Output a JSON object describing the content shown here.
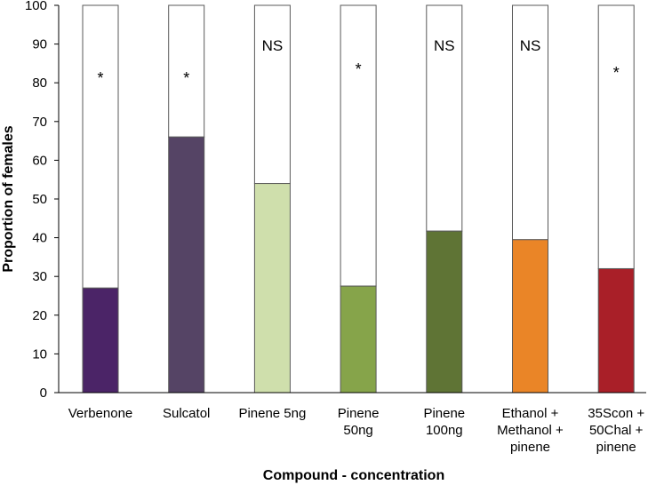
{
  "chart_data": {
    "type": "bar",
    "stacked_to_100": true,
    "categories": [
      [
        "Verbenone"
      ],
      [
        "Sulcatol"
      ],
      [
        "Pinene 5ng"
      ],
      [
        "Pinene",
        "50ng"
      ],
      [
        "Pinene",
        "100ng"
      ],
      [
        "Ethanol +",
        "Methanol +",
        "pinene"
      ],
      [
        "35Scon +",
        "50Chal +",
        "pinene"
      ]
    ],
    "values": [
      27,
      66,
      54,
      27.5,
      41.7,
      39.5,
      32
    ],
    "colors": [
      "#4b2467",
      "#554465",
      "#cfdfac",
      "#86a44a",
      "#5f7435",
      "#ea8527",
      "#a91f28"
    ],
    "remainder_color": "#ffffff",
    "annotations": [
      "*",
      "*",
      "NS",
      "*",
      "NS",
      "NS",
      "*"
    ],
    "xlabel": "Compound - concentration",
    "ylabel": "Proportion of females",
    "ylim": [
      0,
      100
    ],
    "yticks": [
      0,
      10,
      20,
      30,
      40,
      50,
      60,
      70,
      80,
      90,
      100
    ],
    "grid": false
  }
}
